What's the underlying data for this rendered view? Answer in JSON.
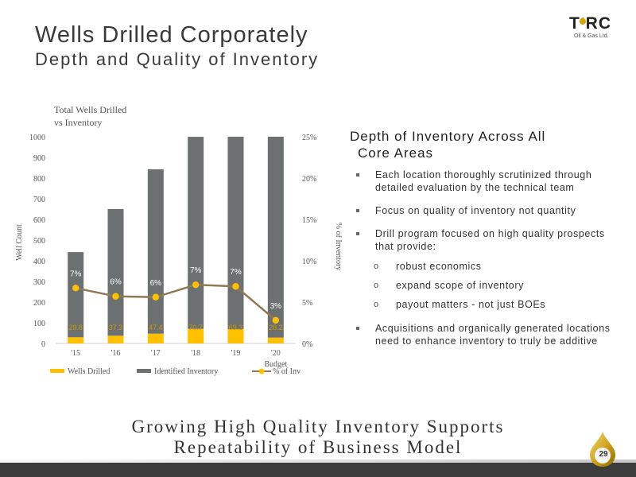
{
  "header": {
    "title": "Wells Drilled Corporately",
    "subtitle": "Depth and Quality of Inventory"
  },
  "logo": {
    "word": "T RC",
    "tagline": "Oil & Gas Ltd."
  },
  "chart_data": {
    "type": "bar",
    "title_lines": [
      "Total Wells Drilled",
      "vs Inventory"
    ],
    "categories": [
      "'15",
      "'16",
      "'17",
      "'18",
      "'19",
      "'20"
    ],
    "category_sublabels": [
      "",
      "",
      "",
      "",
      "",
      "Budget"
    ],
    "ylabel": "Well Count",
    "y2label": "% of Inventory",
    "ylim": [
      0,
      1000
    ],
    "y_ticks": [
      0,
      100,
      200,
      300,
      400,
      500,
      600,
      700,
      800,
      900,
      1000
    ],
    "y2lim": [
      0,
      25
    ],
    "y2_ticks": [
      "0%",
      "5%",
      "10%",
      "15%",
      "20%",
      "25%"
    ],
    "stacked": true,
    "series": [
      {
        "name": "Wells Drilled",
        "values": [
          29.8,
          37.3,
          47.4,
          70.7,
          69.3,
          28.2
        ],
        "labels": [
          "29.8",
          "37.3",
          "47.4",
          "70.7",
          "69.3",
          "28.2"
        ],
        "color": "#ffc000"
      },
      {
        "name": "Identified Inventory",
        "values": [
          412,
          613,
          795,
          929,
          931,
          972
        ],
        "color": "#6d7071"
      },
      {
        "name": "% of Inv",
        "values": [
          6.7,
          5.7,
          5.6,
          7.1,
          6.9,
          2.8
        ],
        "labels": [
          "7%",
          "6%",
          "6%",
          "7%",
          "7%",
          "3%"
        ],
        "color": "#8f7a55",
        "marker_color": "#ffc000",
        "type": "line",
        "axis": "secondary"
      }
    ],
    "legend_position": "bottom",
    "grid": false
  },
  "right": {
    "heading_line1": "Depth of Inventory Across All",
    "heading_line2": "Core Areas",
    "bullets": [
      "Each location thoroughly scrutinized through detailed evaluation by the technical team",
      "Focus on quality of inventory not quantity",
      "Drill program focused on high quality prospects that provide:"
    ],
    "sub_marker": "o",
    "sub_bullets": [
      "robust economics",
      "expand scope of inventory",
      "payout matters - not just BOEs"
    ],
    "last_bullet": "Acquisitions and organically generated locations need to enhance inventory to truly be additive"
  },
  "footer": {
    "tagline_line1": "Growing High Quality Inventory Supports",
    "tagline_line2": "Repeatability of Business Model",
    "page_number": "29"
  }
}
